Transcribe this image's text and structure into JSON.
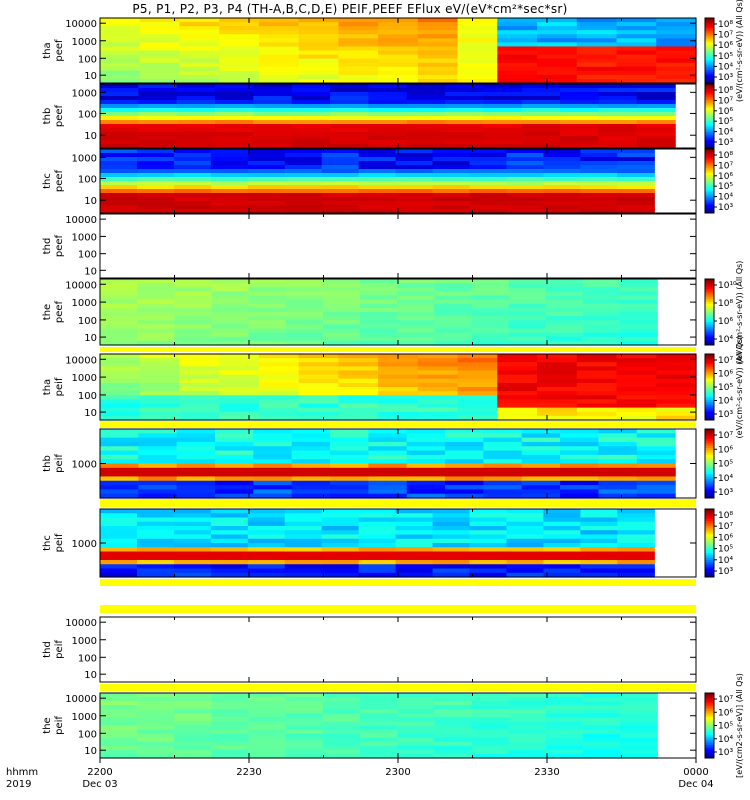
{
  "title": "P5, P1, P2, P3, P4 (TH-A,B,C,D,E) PEIF,PEEF EFlux eV/(eV*cm²*sec*sr)",
  "chart_data": {
    "type": "heatmap",
    "x_axis": {
      "row_label_1": "hhmm",
      "row_label_2": "2019",
      "ticks": [
        {
          "label": "2200",
          "date": "Dec 03"
        },
        {
          "label": "2230",
          "date": ""
        },
        {
          "label": "2300",
          "date": ""
        },
        {
          "label": "2330",
          "date": ""
        },
        {
          "label": "0000",
          "date": "Dec 04"
        }
      ]
    },
    "panels": [
      {
        "id": "tha_peef",
        "ylabel": [
          "tha",
          "peef"
        ],
        "yticks": [
          "10000",
          "1000",
          "100",
          "10"
        ],
        "colorbar": {
          "ticks": [
            "10⁸",
            "10⁷",
            "10⁶",
            "10⁵",
            "10⁴",
            "10³"
          ],
          "label": "(eV/(cm²-s-sr-eV)) (All Qs)"
        },
        "data_end_frac": 1.0
      },
      {
        "id": "thb_peef",
        "ylabel": [
          "thb",
          "peef"
        ],
        "yticks": [
          "1000",
          "100",
          "10"
        ],
        "colorbar": {
          "ticks": [
            "10⁸",
            "10⁷",
            "10⁶",
            "10⁵",
            "10⁴",
            "10³"
          ],
          "label": ""
        },
        "data_end_frac": 0.965
      },
      {
        "id": "thc_peef",
        "ylabel": [
          "thc",
          "peef"
        ],
        "yticks": [
          "1000",
          "100",
          "10"
        ],
        "colorbar": {
          "ticks": [
            "10⁸",
            "10⁷",
            "10⁶",
            "10⁵",
            "10⁴",
            "10³"
          ],
          "label": ""
        },
        "data_end_frac": 0.93
      },
      {
        "id": "thd_peef",
        "ylabel": [
          "thd",
          "peef"
        ],
        "yticks": [
          "10000",
          "1000",
          "100",
          "10"
        ],
        "colorbar": null,
        "data_end_frac": 0
      },
      {
        "id": "the_peef",
        "ylabel": [
          "the",
          "peef"
        ],
        "yticks": [
          "10000",
          "1000",
          "100",
          "10"
        ],
        "colorbar": {
          "ticks": [
            "10¹⁰",
            "10⁸",
            "10⁶",
            "10⁴"
          ],
          "label": "(eV/(cm²-s-sr-eV)) (All Qs)"
        },
        "data_end_frac": 0.935
      },
      {
        "id": "tha_peif",
        "ylabel": [
          "tha",
          "peif"
        ],
        "yticks": [
          "10000",
          "1000",
          "100",
          "10"
        ],
        "colorbar": {
          "ticks": [
            "10⁷",
            "10⁶",
            "10⁵",
            "10⁴",
            "10³"
          ],
          "label": "(eV/(cm²-s-sr-eV)) (All Qs)"
        },
        "data_end_frac": 1.0
      },
      {
        "id": "thb_peif",
        "ylabel": [
          "thb",
          "peif"
        ],
        "yticks": [
          "1000"
        ],
        "colorbar": {
          "ticks": [
            "10⁷",
            "10⁶",
            "10⁵",
            "10⁴",
            "10³"
          ],
          "label": ""
        },
        "data_end_frac": 0.965
      },
      {
        "id": "thc_peif",
        "ylabel": [
          "thc",
          "peif"
        ],
        "yticks": [
          "1000"
        ],
        "colorbar": {
          "ticks": [
            "10⁸",
            "10⁷",
            "10⁶",
            "10⁵",
            "10⁴",
            "10³"
          ],
          "label": ""
        },
        "data_end_frac": 0.93
      },
      {
        "id": "thd_peif",
        "ylabel": [
          "thd",
          "peif"
        ],
        "yticks": [
          "10000",
          "1000",
          "100",
          "10"
        ],
        "colorbar": null,
        "data_end_frac": 0
      },
      {
        "id": "the_peif",
        "ylabel": [
          "the",
          "peif"
        ],
        "yticks": [
          "10000",
          "1000",
          "100",
          "10"
        ],
        "colorbar": {
          "ticks": [
            "10⁷",
            "10⁶",
            "10⁵",
            "10⁴",
            "10³"
          ],
          "label": "[eV/(cm2-s-sr-eV)] (All Qs)"
        },
        "data_end_frac": 0.935
      }
    ]
  }
}
